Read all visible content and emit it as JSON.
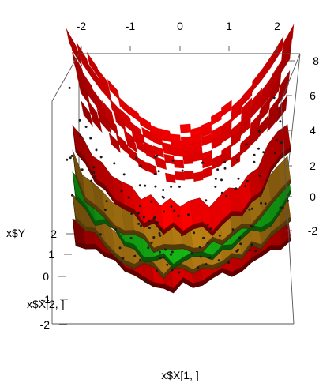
{
  "chart_data": {
    "type": "surface3d",
    "title": "",
    "xlabel": "x$X[1, ]",
    "ylabel": "x$X[2, ]",
    "zlabel": "x$Y",
    "x_ticks": [
      "-2",
      "-1",
      "0",
      "1",
      "2"
    ],
    "y_ticks": [
      "-2",
      "-1",
      "0",
      "1",
      "2"
    ],
    "z_ticks": [
      "-2",
      "0",
      "2",
      "4",
      "6",
      "8"
    ],
    "xlim": [
      -2,
      2
    ],
    "ylim": [
      -2,
      2
    ],
    "zlim": [
      -3,
      9
    ],
    "grid": false,
    "legend": "none",
    "surfaces": [
      {
        "name": "",
        "level": 1.2,
        "amplitude": 4.8,
        "color": "#d40000"
      },
      {
        "name": "",
        "level": 0.2,
        "amplitude": 3.9,
        "color": "#9a6a10"
      },
      {
        "name": "",
        "level": -0.4,
        "amplitude": 3.5,
        "color": "#119a11"
      },
      {
        "name": "",
        "level": -1.0,
        "amplitude": 3.1,
        "color": "#9a6a10"
      },
      {
        "name": "",
        "level": -1.7,
        "amplitude": 2.7,
        "color": "#b30000"
      }
    ],
    "points_count": 140
  }
}
